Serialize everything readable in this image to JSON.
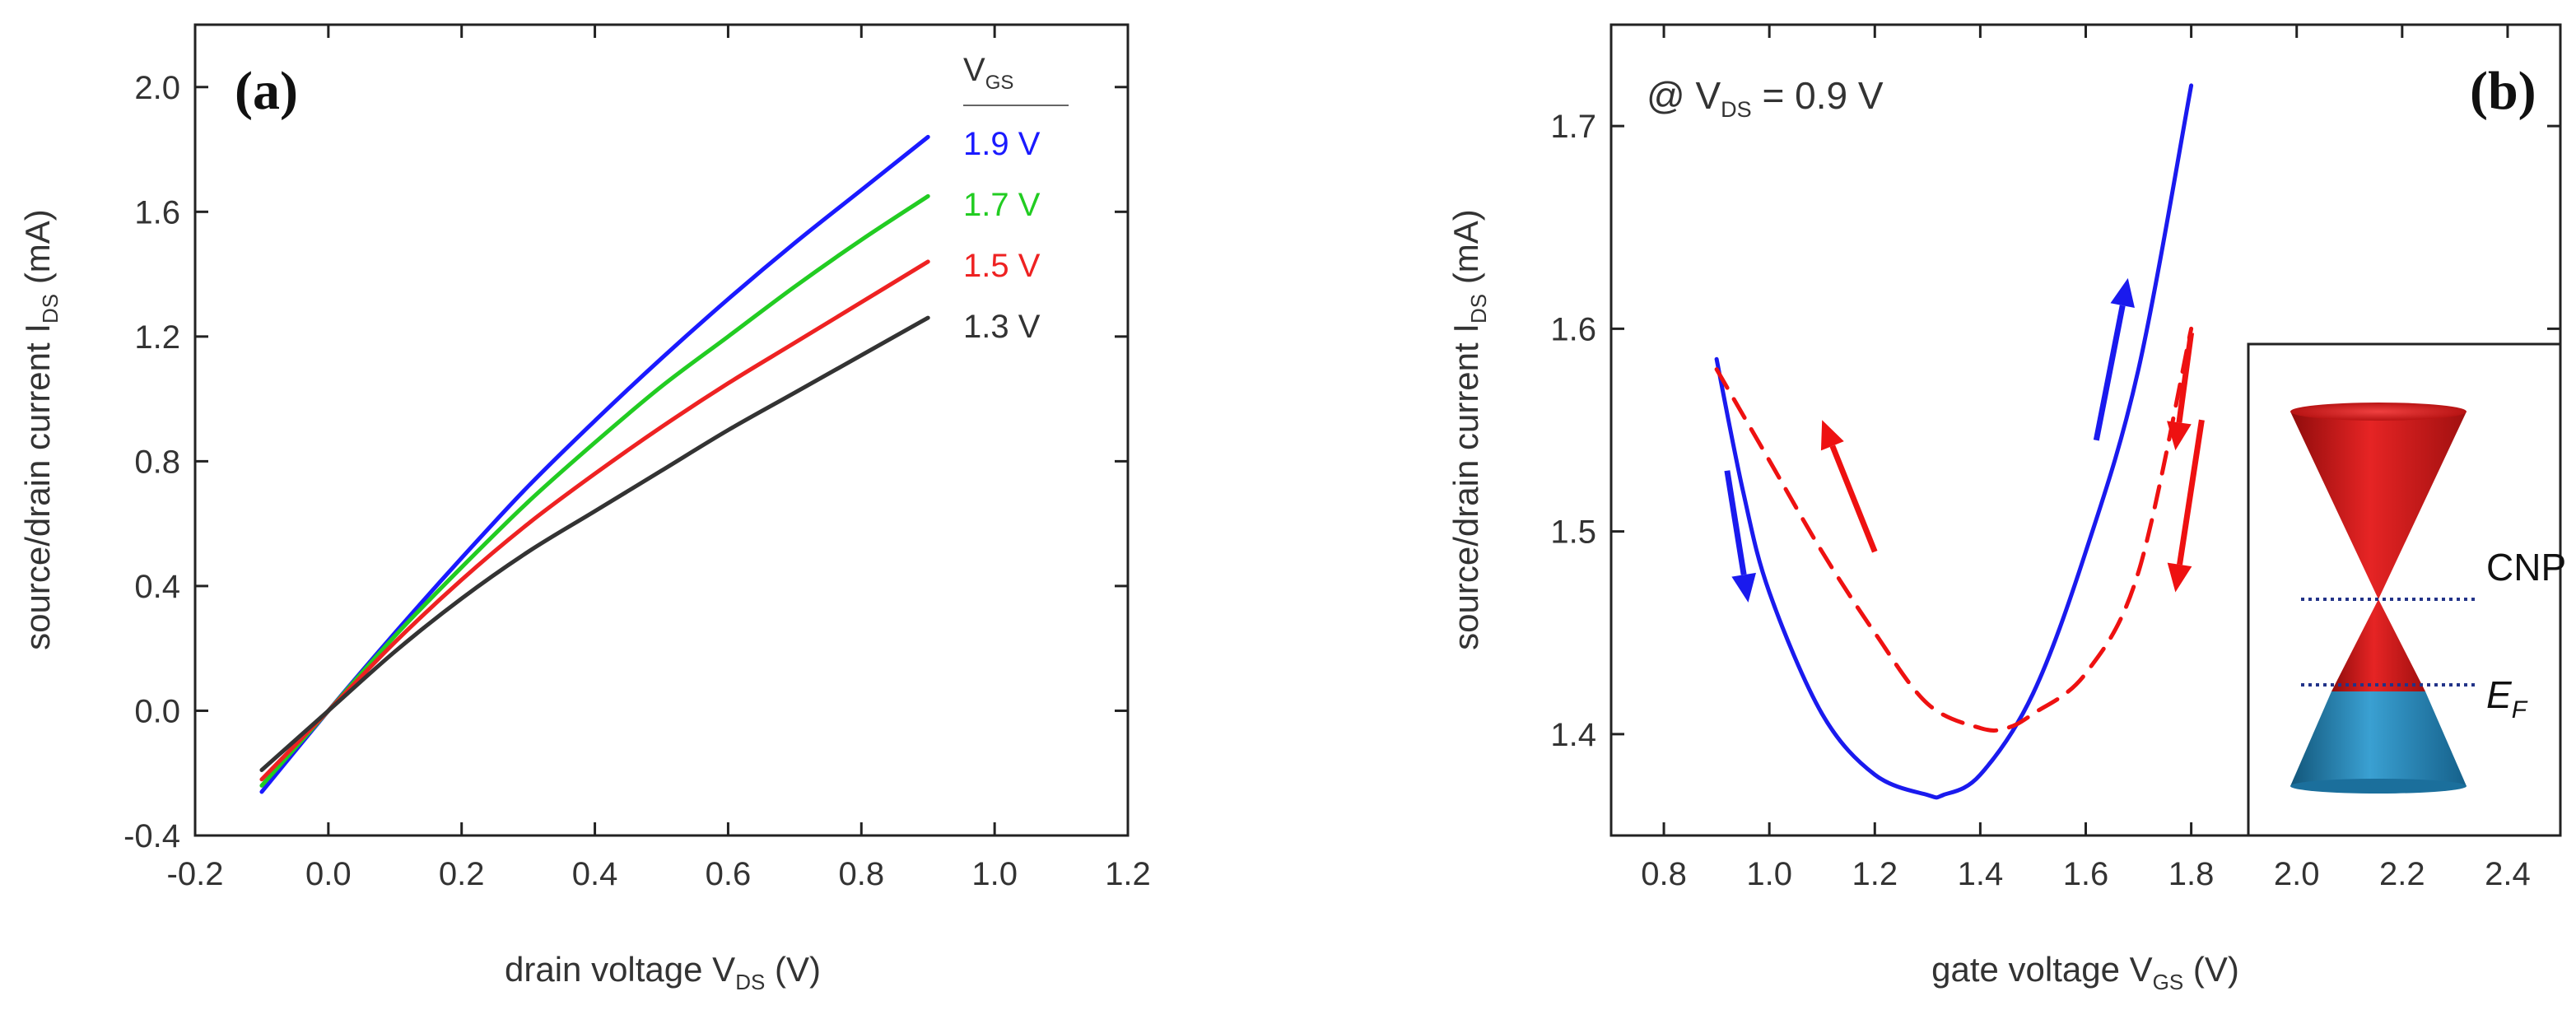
{
  "chart_data": [
    {
      "type": "line",
      "panel_label": "(a)",
      "xlabel_main": "drain voltage V",
      "xlabel_sub": "DS",
      "xlabel_unit": " (V)",
      "ylabel_main": "source/drain current I",
      "ylabel_sub": "DS",
      "ylabel_unit": " (mA)",
      "xlim": [
        -0.2,
        1.2
      ],
      "ylim": [
        -0.4,
        2.2
      ],
      "xticks": [
        "-0.2",
        "0.0",
        "0.2",
        "0.4",
        "0.6",
        "0.8",
        "1.0",
        "1.2"
      ],
      "yticks": [
        "-0.4",
        "0.0",
        "0.4",
        "0.8",
        "1.2",
        "1.6",
        "2.0"
      ],
      "legend_title_main": "V",
      "legend_title_sub": "GS",
      "legend_placement": "top-right",
      "series": [
        {
          "name": "1.9 V",
          "color": "#1a1aff",
          "x": [
            -0.1,
            0.0,
            0.1,
            0.2,
            0.3,
            0.4,
            0.5,
            0.6,
            0.7,
            0.8,
            0.9
          ],
          "y": [
            -0.26,
            0.0,
            0.25,
            0.49,
            0.72,
            0.93,
            1.13,
            1.32,
            1.5,
            1.67,
            1.84
          ]
        },
        {
          "name": "1.7 V",
          "color": "#22cc22",
          "x": [
            -0.1,
            0.0,
            0.1,
            0.2,
            0.3,
            0.4,
            0.5,
            0.6,
            0.7,
            0.8,
            0.9
          ],
          "y": [
            -0.24,
            0.0,
            0.24,
            0.46,
            0.67,
            0.86,
            1.04,
            1.2,
            1.36,
            1.51,
            1.65
          ]
        },
        {
          "name": "1.5 V",
          "color": "#ee2222",
          "x": [
            -0.1,
            0.0,
            0.1,
            0.2,
            0.3,
            0.4,
            0.5,
            0.6,
            0.7,
            0.8,
            0.9
          ],
          "y": [
            -0.22,
            0.0,
            0.22,
            0.42,
            0.6,
            0.76,
            0.91,
            1.05,
            1.18,
            1.31,
            1.44
          ]
        },
        {
          "name": "1.3 V",
          "color": "#333333",
          "x": [
            -0.1,
            0.0,
            0.1,
            0.2,
            0.3,
            0.4,
            0.5,
            0.6,
            0.7,
            0.8,
            0.9
          ],
          "y": [
            -0.19,
            0.0,
            0.19,
            0.36,
            0.51,
            0.64,
            0.77,
            0.9,
            1.02,
            1.14,
            1.26
          ]
        }
      ]
    },
    {
      "type": "line",
      "panel_label": "(b)",
      "annotation_main": "@ V",
      "annotation_sub": "DS",
      "annotation_rest": " = 0.9 V",
      "xlabel_main": "gate voltage V",
      "xlabel_sub": "GS",
      "xlabel_unit": " (V)",
      "ylabel_main": "source/drain current I",
      "ylabel_sub": "DS",
      "ylabel_unit": " (mA)",
      "xlim": [
        0.7,
        2.5
      ],
      "ylim": [
        1.35,
        1.75
      ],
      "xticks": [
        "0.8",
        "1.0",
        "1.2",
        "1.4",
        "1.6",
        "1.8",
        "2.0",
        "2.2",
        "2.4"
      ],
      "yticks": [
        "1.4",
        "1.5",
        "1.6",
        "1.7"
      ],
      "series": [
        {
          "color": "#1a1aee",
          "style": "solid",
          "x": [
            0.9,
            0.95,
            1.0,
            1.1,
            1.2,
            1.3,
            1.33,
            1.4,
            1.5,
            1.6,
            1.7,
            1.8
          ],
          "y": [
            1.585,
            1.52,
            1.47,
            1.41,
            1.38,
            1.37,
            1.37,
            1.38,
            1.42,
            1.49,
            1.58,
            1.72
          ]
        },
        {
          "color": "#ee1111",
          "style": "dashed",
          "x": [
            0.9,
            1.0,
            1.1,
            1.2,
            1.3,
            1.4,
            1.45,
            1.5,
            1.6,
            1.7,
            1.8
          ],
          "y": [
            1.58,
            1.535,
            1.49,
            1.45,
            1.415,
            1.403,
            1.403,
            1.41,
            1.43,
            1.48,
            1.6
          ]
        }
      ],
      "arrows": [
        {
          "color": "#1a1aee",
          "from": [
            0.92,
            1.53
          ],
          "to": [
            0.96,
            1.465
          ]
        },
        {
          "color": "#1a1aee",
          "from": [
            1.62,
            1.545
          ],
          "to": [
            1.68,
            1.625
          ]
        },
        {
          "color": "#ee1111",
          "from": [
            1.2,
            1.49
          ],
          "to": [
            1.1,
            1.555
          ]
        },
        {
          "color": "#ee1111",
          "from": [
            1.8,
            1.598
          ],
          "to": [
            1.77,
            1.54
          ]
        },
        {
          "color": "#ee1111",
          "from": [
            1.82,
            1.555
          ],
          "to": [
            1.77,
            1.47
          ]
        }
      ],
      "inset": {
        "label_cnp": "CNP",
        "label_ef_main": "E",
        "label_ef_sub": "F",
        "upper_cone_color": "#d11a1a",
        "lower_cone_color": "#1f7fb0"
      }
    }
  ]
}
